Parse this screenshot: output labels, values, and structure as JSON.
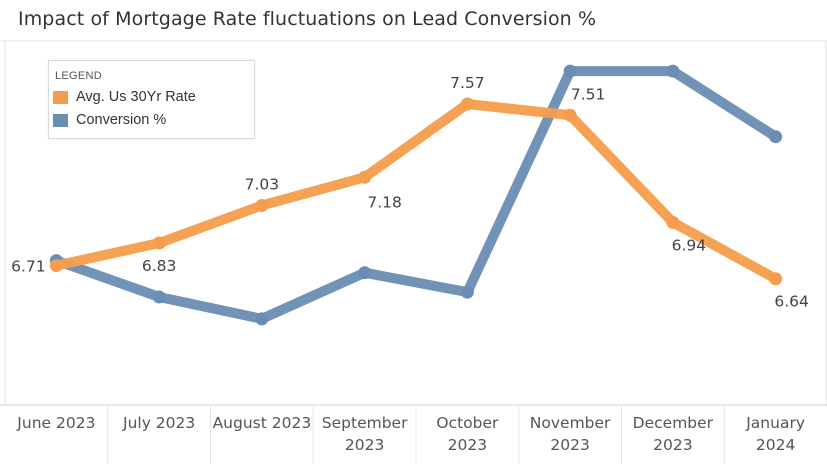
{
  "title": "Impact of Mortgage Rate fluctuations on Lead Conversion %",
  "legend": {
    "title": "LEGEND",
    "items": [
      {
        "label": "Avg. Us 30Yr Rate",
        "color": "#F59D4C"
      },
      {
        "label": "Conversion %",
        "color": "#6A8DB4"
      }
    ]
  },
  "chart_data": {
    "type": "line",
    "title": "Impact of Mortgage Rate fluctuations on Lead Conversion %",
    "categories": [
      [
        "June 2023"
      ],
      [
        "July 2023"
      ],
      [
        "August 2023"
      ],
      [
        "September",
        "2023"
      ],
      [
        "October",
        "2023"
      ],
      [
        "November",
        "2023"
      ],
      [
        "December",
        "2023"
      ],
      [
        "January",
        "2024"
      ]
    ],
    "series": [
      {
        "name": "Avg. Us 30Yr Rate",
        "color": "#F59D4C",
        "values": [
          6.71,
          6.83,
          7.03,
          7.18,
          7.57,
          7.51,
          6.94,
          6.64
        ],
        "labels": [
          "6.71",
          "6.83",
          "7.03",
          "7.18",
          "7.57",
          "7.51",
          "6.94",
          "6.64"
        ],
        "ylim": [
          6.0,
          7.9
        ]
      },
      {
        "name": "Conversion %",
        "color": "#6A8DB4",
        "values": [
          5.35,
          4.6,
          4.15,
          5.1,
          4.7,
          9.25,
          9.25,
          7.9
        ],
        "ylim": [
          2.5,
          9.85
        ]
      }
    ],
    "grid": false,
    "legend_position": "top-left"
  }
}
